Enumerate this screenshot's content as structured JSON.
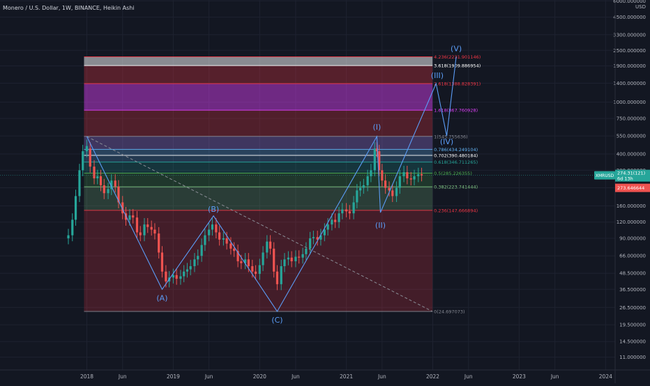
{
  "header": {
    "title": "Monero / U.S. Dollar, 1W, BINANCE, Heikin Ashi"
  },
  "colors": {
    "background": "#131722",
    "grid": "#1e2230",
    "up": "#26a69a",
    "down": "#ef5350",
    "wave": "#5b9cf6",
    "trend_dashed": "#8a8d96",
    "text": "#b2b5be"
  },
  "chart_data": {
    "type": "candlestick",
    "title": "Monero / U.S. Dollar, 1W, BINANCE, Heikin Ashi",
    "y_scale": "log",
    "y_unit": "USD",
    "y_ticks": [
      "6000.000000",
      "4500.000000",
      "3300.000000",
      "2500.000000",
      "1900.000000",
      "1400.000000",
      "1000.000000",
      "750.000000",
      "550.000000",
      "400.000000",
      "300.000000",
      "220.000000",
      "160.000000",
      "120.000000",
      "90.000000",
      "66.000000",
      "48.500000",
      "36.500000",
      "26.500000",
      "19.500000",
      "14.500000",
      "11.000000"
    ],
    "x_ticks": [
      "2018",
      "Jun",
      "2019",
      "Jun",
      "2020",
      "Jun",
      "2021",
      "Jun",
      "2022",
      "Jun",
      "2023",
      "Jun",
      "2024"
    ],
    "price_tags": {
      "symbol": {
        "text": "XMRUSD",
        "value": 274.32
      },
      "price": {
        "text": "274.31(121)",
        "value": 274.31
      },
      "countdown": {
        "text": "6d 13h"
      },
      "level": {
        "text": "273.646644",
        "value": 273.646644
      }
    },
    "fib_levels": [
      {
        "label": "0(24.697073)",
        "ratio": 0,
        "value": 24.697073,
        "color": "#868993"
      },
      {
        "label": "0.236(147.666894)",
        "ratio": 0.236,
        "value": 147.666894,
        "color": "#f23645"
      },
      {
        "label": "0.382(223.741444)",
        "ratio": 0.382,
        "value": 223.741444,
        "color": "#81c784"
      },
      {
        "label": "0.5(285.226355)",
        "ratio": 0.5,
        "value": 285.226355,
        "color": "#4caf50"
      },
      {
        "label": "0.618(346.711265)",
        "ratio": 0.618,
        "value": 346.711265,
        "color": "#26a69a"
      },
      {
        "label": "0.702(390.480184)",
        "ratio": 0.702,
        "value": 390.480184,
        "color": "#ffffff"
      },
      {
        "label": "0.786(434.249104)",
        "ratio": 0.786,
        "value": 434.249104,
        "color": "#64b5f6"
      },
      {
        "label": "1(545.755636)",
        "ratio": 1,
        "value": 545.755636,
        "color": "#868993"
      },
      {
        "label": "1.618(867.760928)",
        "ratio": 1.618,
        "value": 867.760928,
        "color": "#e040fb"
      },
      {
        "label": "2.618(1388.828391)",
        "ratio": 2.618,
        "value": 1388.828391,
        "color": "#f23645"
      },
      {
        "label": "3.618(1909.886954)",
        "ratio": 3.618,
        "value": 1909.886954,
        "color": "#ffffff"
      },
      {
        "label": "4.236(2231.901146)",
        "ratio": 4.236,
        "value": 2231.901146,
        "color": "#f23645"
      }
    ],
    "wave_labels": [
      {
        "text": "(A)",
        "date": "2018-11-15",
        "value": 36.5
      },
      {
        "text": "(B)",
        "date": "2019-06-20",
        "value": 134
      },
      {
        "text": "(C)",
        "date": "2020-03-15",
        "value": 24.7
      },
      {
        "text": "(I)",
        "date": "2021-05-10",
        "value": 545
      },
      {
        "text": "(II)",
        "date": "2021-05-25",
        "value": 142
      },
      {
        "text": "(III)",
        "date": "2022-01-20",
        "value": 1390
      },
      {
        "text": "(IV)",
        "date": "2022-03-01",
        "value": 550
      },
      {
        "text": "(V)",
        "date": "2022-04-10",
        "value": 2232
      }
    ],
    "wave_path": [
      {
        "date": "2018-01-01",
        "value": 545
      },
      {
        "date": "2018-11-15",
        "value": 36.5
      },
      {
        "date": "2019-06-20",
        "value": 134
      },
      {
        "date": "2020-03-15",
        "value": 24.7
      },
      {
        "date": "2021-05-10",
        "value": 545
      },
      {
        "date": "2021-05-25",
        "value": 142
      },
      {
        "date": "2022-01-15",
        "value": 1390
      },
      {
        "date": "2022-03-01",
        "value": 550
      },
      {
        "date": "2022-04-10",
        "value": 2232
      }
    ],
    "trendline": [
      {
        "date": "2018-01-01",
        "value": 545
      },
      {
        "date": "2021-12-31",
        "value": 24.7
      }
    ],
    "candles_approx": [
      [
        "2017-10-15",
        90,
        95
      ],
      [
        "2017-11-01",
        95,
        125
      ],
      [
        "2017-11-15",
        125,
        190
      ],
      [
        "2017-12-01",
        190,
        300
      ],
      [
        "2017-12-15",
        300,
        420
      ],
      [
        "2018-01-01",
        420,
        460
      ],
      [
        "2018-01-15",
        440,
        320
      ],
      [
        "2018-02-01",
        320,
        260
      ],
      [
        "2018-02-15",
        260,
        270
      ],
      [
        "2018-03-01",
        270,
        230
      ],
      [
        "2018-03-15",
        230,
        200
      ],
      [
        "2018-04-01",
        200,
        215
      ],
      [
        "2018-04-15",
        215,
        250
      ],
      [
        "2018-05-01",
        250,
        225
      ],
      [
        "2018-05-15",
        225,
        170
      ],
      [
        "2018-06-01",
        170,
        140
      ],
      [
        "2018-06-15",
        140,
        125
      ],
      [
        "2018-07-01",
        125,
        135
      ],
      [
        "2018-07-15",
        135,
        130
      ],
      [
        "2018-08-01",
        130,
        100
      ],
      [
        "2018-08-15",
        100,
        95
      ],
      [
        "2018-09-01",
        95,
        115
      ],
      [
        "2018-09-15",
        115,
        110
      ],
      [
        "2018-10-01",
        110,
        105
      ],
      [
        "2018-10-15",
        105,
        98
      ],
      [
        "2018-11-01",
        98,
        70
      ],
      [
        "2018-11-15",
        70,
        50
      ],
      [
        "2018-12-01",
        50,
        42
      ],
      [
        "2018-12-15",
        42,
        45
      ],
      [
        "2019-01-01",
        45,
        47
      ],
      [
        "2019-01-15",
        47,
        44
      ],
      [
        "2019-02-01",
        44,
        46
      ],
      [
        "2019-02-15",
        46,
        50
      ],
      [
        "2019-03-01",
        50,
        52
      ],
      [
        "2019-03-15",
        52,
        55
      ],
      [
        "2019-04-01",
        55,
        62
      ],
      [
        "2019-04-15",
        62,
        66
      ],
      [
        "2019-05-01",
        66,
        80
      ],
      [
        "2019-05-15",
        80,
        95
      ],
      [
        "2019-06-01",
        95,
        105
      ],
      [
        "2019-06-15",
        105,
        115
      ],
      [
        "2019-07-01",
        115,
        100
      ],
      [
        "2019-07-15",
        100,
        88
      ],
      [
        "2019-08-01",
        88,
        90
      ],
      [
        "2019-08-15",
        90,
        82
      ],
      [
        "2019-09-01",
        82,
        75
      ],
      [
        "2019-09-15",
        75,
        72
      ],
      [
        "2019-10-01",
        72,
        60
      ],
      [
        "2019-10-15",
        60,
        58
      ],
      [
        "2019-11-01",
        58,
        62
      ],
      [
        "2019-11-15",
        62,
        55
      ],
      [
        "2019-12-01",
        55,
        50
      ],
      [
        "2019-12-15",
        50,
        48
      ],
      [
        "2020-01-01",
        48,
        56
      ],
      [
        "2020-01-15",
        56,
        70
      ],
      [
        "2020-02-01",
        70,
        85
      ],
      [
        "2020-02-15",
        85,
        75
      ],
      [
        "2020-03-01",
        75,
        50
      ],
      [
        "2020-03-15",
        50,
        40
      ],
      [
        "2020-04-01",
        40,
        55
      ],
      [
        "2020-04-15",
        55,
        62
      ],
      [
        "2020-05-01",
        62,
        64
      ],
      [
        "2020-05-15",
        64,
        60
      ],
      [
        "2020-06-01",
        60,
        65
      ],
      [
        "2020-06-15",
        65,
        64
      ],
      [
        "2020-07-01",
        64,
        68
      ],
      [
        "2020-07-15",
        68,
        75
      ],
      [
        "2020-08-01",
        75,
        90
      ],
      [
        "2020-08-15",
        90,
        92
      ],
      [
        "2020-09-01",
        92,
        88
      ],
      [
        "2020-09-15",
        88,
        95
      ],
      [
        "2020-10-01",
        95,
        105
      ],
      [
        "2020-10-15",
        105,
        115
      ],
      [
        "2020-11-01",
        115,
        125
      ],
      [
        "2020-11-15",
        125,
        120
      ],
      [
        "2020-12-01",
        120,
        140
      ],
      [
        "2020-12-15",
        140,
        150
      ],
      [
        "2021-01-01",
        150,
        145
      ],
      [
        "2021-01-15",
        145,
        140
      ],
      [
        "2021-02-01",
        140,
        170
      ],
      [
        "2021-02-15",
        170,
        210
      ],
      [
        "2021-03-01",
        210,
        220
      ],
      [
        "2021-03-15",
        220,
        230
      ],
      [
        "2021-04-01",
        230,
        270
      ],
      [
        "2021-04-15",
        270,
        300
      ],
      [
        "2021-05-01",
        300,
        440
      ],
      [
        "2021-05-10",
        440,
        420
      ],
      [
        "2021-05-20",
        420,
        300
      ],
      [
        "2021-06-01",
        300,
        250
      ],
      [
        "2021-06-15",
        250,
        220
      ],
      [
        "2021-07-01",
        220,
        210
      ],
      [
        "2021-07-15",
        210,
        190
      ],
      [
        "2021-08-01",
        190,
        220
      ],
      [
        "2021-08-15",
        220,
        270
      ],
      [
        "2021-09-01",
        270,
        290
      ],
      [
        "2021-09-15",
        290,
        260
      ],
      [
        "2021-10-01",
        260,
        255
      ],
      [
        "2021-10-15",
        255,
        270
      ],
      [
        "2021-11-01",
        270,
        280
      ],
      [
        "2021-11-15",
        280,
        274
      ]
    ]
  }
}
